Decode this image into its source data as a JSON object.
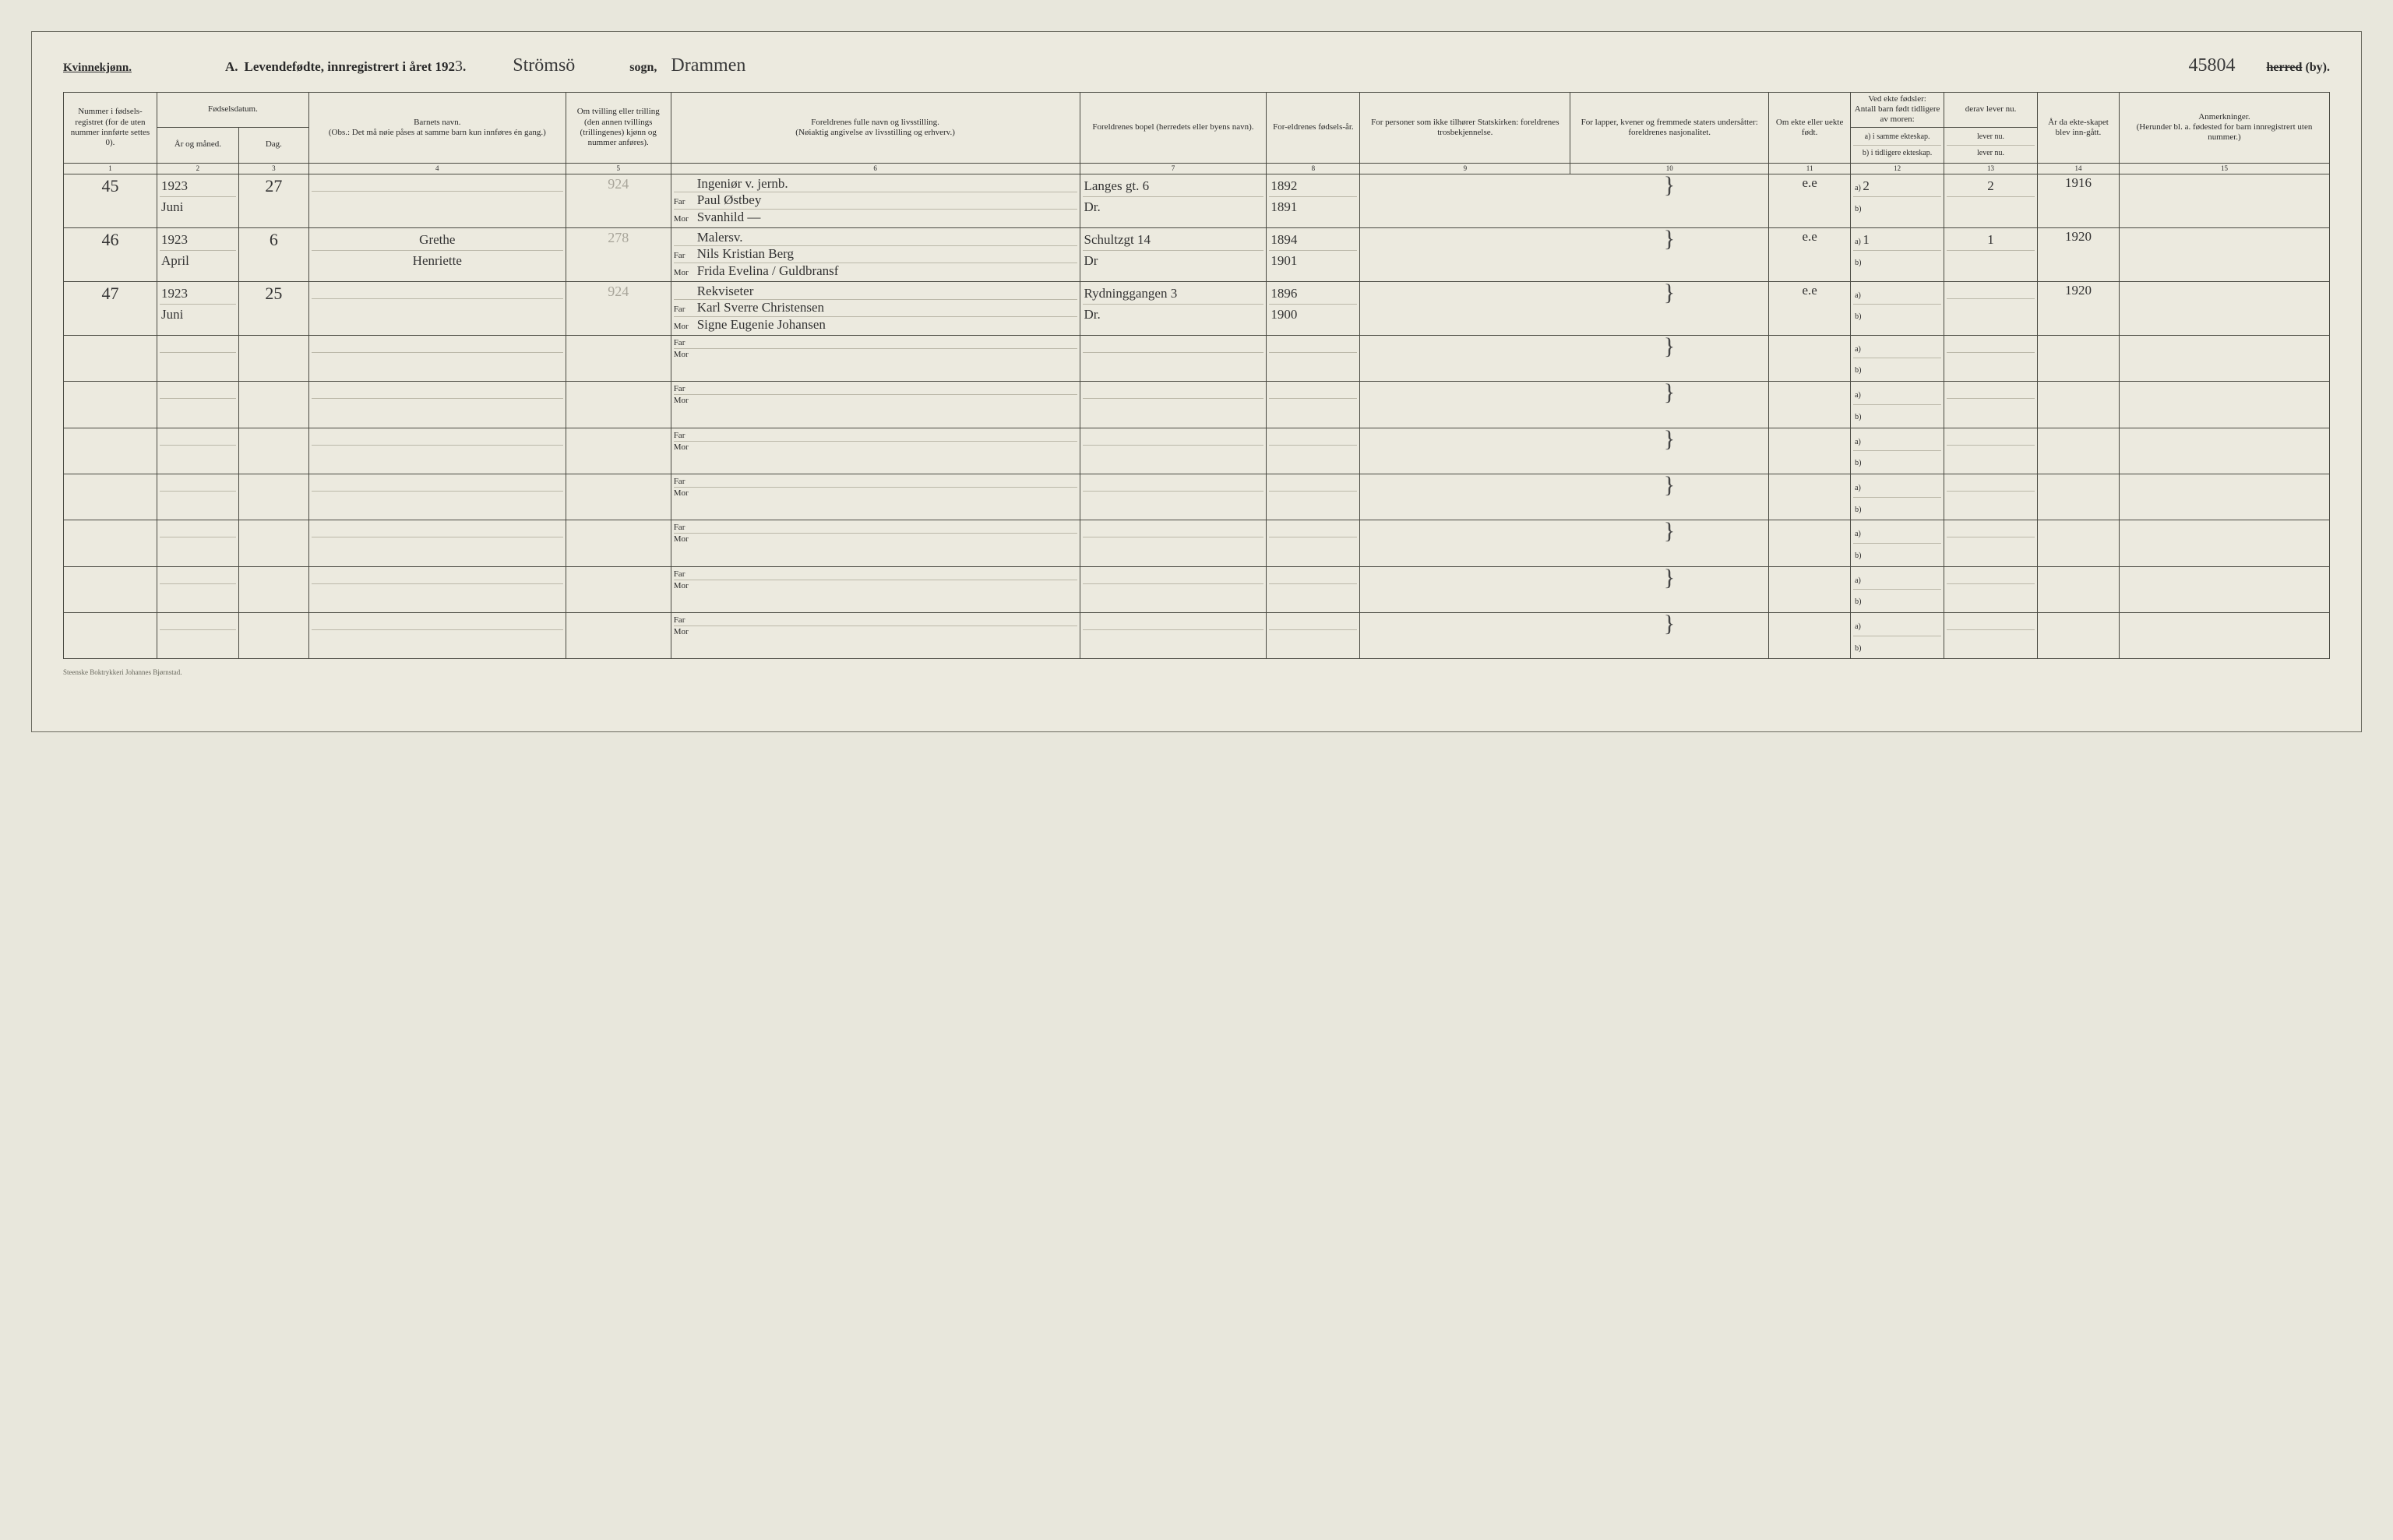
{
  "header": {
    "gender": "Kvinnekjønn.",
    "title_a": "A.",
    "title_text": "Levendefødte, innregistrert i året 192",
    "year_digit": "3",
    "period": ".",
    "sogn_value": "Strömsö",
    "sogn_label": "sogn,",
    "herred_value": "Drammen",
    "folio_value": "45804",
    "herred_strike": "herred",
    "herred_by": "(by)."
  },
  "columns": {
    "c1": "Nummer i fødsels-registret (for de uten nummer innførte settes 0).",
    "c2_top": "Fødselsdatum.",
    "c2a": "År og måned.",
    "c2b": "Dag.",
    "c4": "Barnets navn.\n(Obs.: Det må nøie påses at samme barn kun innføres én gang.)",
    "c5": "Om tvilling eller trilling (den annen tvillings (trillingenes) kjønn og nummer anføres).",
    "c6": "Foreldrenes fulle navn og livsstilling.\n(Nøiaktig angivelse av livsstilling og erhverv.)",
    "c7": "Foreldrenes bopel (herredets eller byens navn).",
    "c8": "For-eldrenes fødsels-år.",
    "c9": "For personer som ikke tilhører Statskirken: foreldrenes trosbekjennelse.",
    "c10": "For lapper, kvener og fremmede staters undersåtter: foreldrenes nasjonalitet.",
    "c11": "Om ekte eller uekte født.",
    "c12_top": "Ved ekte fødsler:\nAntall barn født tidligere av moren:",
    "c12a": "a) i samme ekteskap.",
    "c12b": "b) i tidligere ekteskap.",
    "c13_top": "derav lever nu.",
    "c13a": "lever nu.",
    "c13b": "lever nu.",
    "c14": "År da ekte-skapet blev inn-gått.",
    "c15": "Anmerkninger.\n(Herunder bl. a. fødested for barn innregistrert uten nummer.)",
    "far": "Far",
    "mor": "Mor",
    "nums": [
      "1",
      "2",
      "3",
      "4",
      "5",
      "6",
      "7",
      "8",
      "9",
      "10",
      "11",
      "12",
      "13",
      "14",
      "15"
    ]
  },
  "rows": [
    {
      "num": "45",
      "year": "1923",
      "month": "Juni",
      "day": "27",
      "name1": "",
      "name2": "",
      "twin": "924",
      "occupation": "Ingeniør v. jernb.",
      "far": "Paul Østbey",
      "mor": "Svanhild —",
      "bopel1": "Langes gt. 6",
      "bopel2": "Dr.",
      "paryr1": "1892",
      "paryr2": "1891",
      "ekte": "e.e",
      "c12a": "2",
      "c12b": "",
      "c13a": "2",
      "c13b": "",
      "c14": "1916"
    },
    {
      "num": "46",
      "year": "1923",
      "month": "April",
      "day": "6",
      "name1": "Grethe",
      "name2": "Henriette",
      "twin": "278",
      "occupation": "Malersv.",
      "far": "Nils Kristian Berg",
      "mor": "Frida Evelina / Guldbransf",
      "bopel1": "Schultzgt 14",
      "bopel2": "Dr",
      "paryr1": "1894",
      "paryr2": "1901",
      "ekte": "e.e",
      "c12a": "1",
      "c12b": "",
      "c13a": "1",
      "c13b": "",
      "c14": "1920"
    },
    {
      "num": "47",
      "year": "1923",
      "month": "Juni",
      "day": "25",
      "name1": "",
      "name2": "",
      "twin": "924",
      "occupation": "Rekviseter",
      "far": "Karl Sverre Christensen",
      "mor": "Signe Eugenie Johansen",
      "bopel1": "Rydninggangen 3",
      "bopel2": "Dr.",
      "paryr1": "1896",
      "paryr2": "1900",
      "ekte": "e.e",
      "c12a": "",
      "c12b": "",
      "c13a": "",
      "c13b": "",
      "c14": "1920"
    }
  ],
  "ab": {
    "a": "a)",
    "b": "b)"
  },
  "footer": "Steenske Boktrykkeri Johannes Bjørnstad."
}
